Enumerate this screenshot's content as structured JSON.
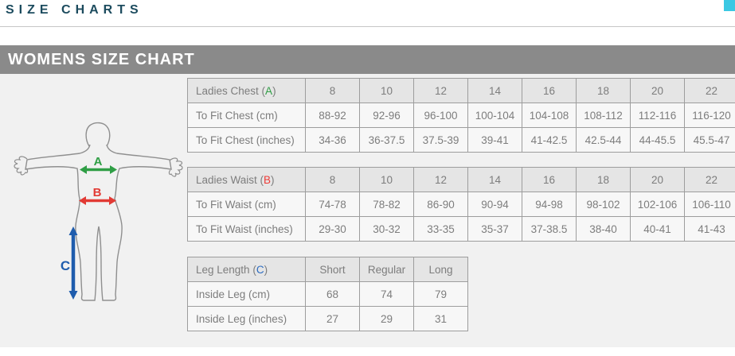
{
  "page": {
    "title": "SIZE CHARTS"
  },
  "section": {
    "title": "WOMENS SIZE CHART"
  },
  "colors": {
    "title_text": "#1c4b5e",
    "accent_square": "#3bc8e3",
    "banner_bg": "#8a8a8a",
    "banner_text": "#ffffff",
    "page_bg": "#f1f1f1",
    "table_border": "#9d9d9d",
    "table_text": "#7d7d7d",
    "header_cell_bg": "#e5e5e5",
    "data_cell_bg": "#f7f7f7"
  },
  "diagram": {
    "labels": [
      {
        "letter": "A",
        "color": "#2f9e45"
      },
      {
        "letter": "B",
        "color": "#e23a34"
      },
      {
        "letter": "C",
        "color": "#1e5cad"
      }
    ]
  },
  "tables": [
    {
      "name": "chest",
      "header": {
        "pre": "Ladies Chest (",
        "letter": "A",
        "post": ")",
        "letter_color": "#2f9e45"
      },
      "columns": [
        "8",
        "10",
        "12",
        "14",
        "16",
        "18",
        "20",
        "22"
      ],
      "rows": [
        {
          "label": "To Fit Chest (cm)",
          "values": [
            "88-92",
            "92-96",
            "96-100",
            "100-104",
            "104-108",
            "108-112",
            "112-116",
            "116-120"
          ]
        },
        {
          "label": "To Fit Chest (inches)",
          "values": [
            "34-36",
            "36-37.5",
            "37.5-39",
            "39-41",
            "41-42.5",
            "42.5-44",
            "44-45.5",
            "45.5-47"
          ]
        }
      ]
    },
    {
      "name": "waist",
      "header": {
        "pre": "Ladies Waist (",
        "letter": "B",
        "post": ")",
        "letter_color": "#ee3a36"
      },
      "columns": [
        "8",
        "10",
        "12",
        "14",
        "16",
        "18",
        "20",
        "22"
      ],
      "rows": [
        {
          "label": "To Fit Waist (cm)",
          "values": [
            "74-78",
            "78-82",
            "86-90",
            "90-94",
            "94-98",
            "98-102",
            "102-106",
            "106-110"
          ]
        },
        {
          "label": "To Fit Waist (inches)",
          "values": [
            "29-30",
            "30-32",
            "33-35",
            "35-37",
            "37-38.5",
            "38-40",
            "40-41",
            "41-43"
          ]
        }
      ]
    },
    {
      "name": "leg-length",
      "header": {
        "pre": "Leg Length (",
        "letter": "C",
        "post": ")",
        "letter_color": "#2a6ac0"
      },
      "columns": [
        "Short",
        "Regular",
        "Long"
      ],
      "rows": [
        {
          "label": "Inside Leg (cm)",
          "values": [
            "68",
            "74",
            "79"
          ]
        },
        {
          "label": "Inside Leg (inches)",
          "values": [
            "27",
            "29",
            "31"
          ]
        }
      ]
    }
  ]
}
